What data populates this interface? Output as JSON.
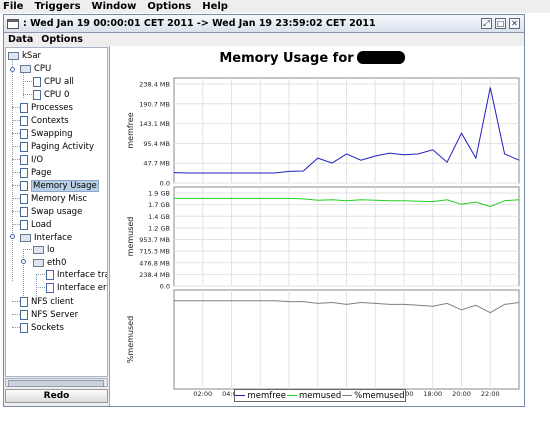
{
  "app_menu": [
    "File",
    "Triggers",
    "Window",
    "Options",
    "Help"
  ],
  "window": {
    "title": " : Wed Jan 19 00:00:01 CET 2011 -> Wed Jan 19 23:59:02 CET 2011"
  },
  "sub_menu": [
    "Data",
    "Options"
  ],
  "tree": {
    "items": [
      {
        "label": "kSar"
      },
      {
        "label": "CPU"
      },
      {
        "label": "CPU all"
      },
      {
        "label": "CPU 0"
      },
      {
        "label": "Processes"
      },
      {
        "label": "Contexts"
      },
      {
        "label": "Swapping"
      },
      {
        "label": "Paging Activity"
      },
      {
        "label": "I/O"
      },
      {
        "label": "Page"
      },
      {
        "label": "Memory Usage"
      },
      {
        "label": "Memory Misc"
      },
      {
        "label": "Swap usage"
      },
      {
        "label": "Load"
      },
      {
        "label": "Interface"
      },
      {
        "label": "lo"
      },
      {
        "label": "eth0"
      },
      {
        "label": "Interface traffic"
      },
      {
        "label": "Interface errors"
      },
      {
        "label": "NFS client"
      },
      {
        "label": "NFS Server"
      },
      {
        "label": "Sockets"
      }
    ]
  },
  "redo_label": "Redo",
  "chart_data": {
    "type": "line",
    "title": "Memory Usage for",
    "x": [
      "00:00",
      "01:00",
      "02:00",
      "03:00",
      "04:00",
      "05:00",
      "06:00",
      "07:00",
      "08:00",
      "09:00",
      "10:00",
      "11:00",
      "12:00",
      "13:00",
      "14:00",
      "15:00",
      "16:00",
      "17:00",
      "18:00",
      "19:00",
      "20:00",
      "21:00",
      "22:00",
      "23:00",
      "24:00"
    ],
    "xticks": [
      "02:00",
      "04:00",
      "06:00",
      "08:00",
      "10:00",
      "12:00",
      "14:00",
      "16:00",
      "18:00",
      "20:00",
      "22:00"
    ],
    "panels": [
      {
        "ylabel": "memfree",
        "yticks": [
          "0.0",
          "47.7 MB",
          "95.4 MB",
          "143.1 MB",
          "190.7 MB",
          "238.4 MB"
        ],
        "ylim_mb": [
          0,
          238.4
        ],
        "series": [
          {
            "name": "memfree",
            "color": "#2020c0",
            "values": [
              25,
              24,
              24,
              24,
              24,
              24,
              24,
              24,
              28,
              29,
              60,
              48,
              70,
              55,
              65,
              72,
              68,
              70,
              80,
              50,
              120,
              60,
              230,
              70,
              55
            ]
          }
        ]
      },
      {
        "ylabel": "memused",
        "yticks": [
          "0.0",
          "238.4 MB",
          "476.8 MB",
          "715.3 MB",
          "953.7 MB",
          "1.2 GB",
          "1.4 GB",
          "1.7 GB",
          "1.9 GB"
        ],
        "ylim_gb": [
          0,
          2.05
        ],
        "series": [
          {
            "name": "memused",
            "color": "#20d020",
            "values": [
              1.93,
              1.93,
              1.93,
              1.93,
              1.93,
              1.93,
              1.93,
              1.93,
              1.93,
              1.92,
              1.89,
              1.9,
              1.88,
              1.9,
              1.89,
              1.88,
              1.88,
              1.87,
              1.86,
              1.9,
              1.8,
              1.85,
              1.75,
              1.88,
              1.9
            ]
          }
        ]
      },
      {
        "ylabel": "%memused",
        "yticks": [],
        "ylim": [
          0,
          100
        ],
        "series": [
          {
            "name": "%memused",
            "color": "#808080",
            "values": [
              95,
              95,
              95,
              95,
              95,
              95,
              95,
              95,
              94,
              94,
              92,
              93,
              91,
              93,
              92,
              91,
              91,
              90,
              89,
              92,
              85,
              90,
              82,
              91,
              93
            ]
          }
        ]
      }
    ],
    "legend": [
      "memfree",
      "memused",
      "%memused"
    ]
  }
}
